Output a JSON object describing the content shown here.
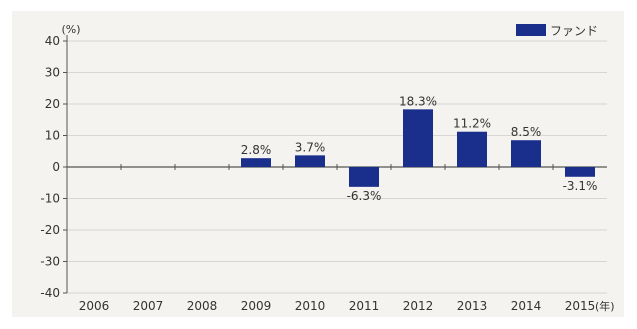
{
  "chart_data": {
    "type": "bar",
    "y_unit": "(%)",
    "x_unit": "(年)",
    "categories": [
      "2006",
      "2007",
      "2008",
      "2009",
      "2010",
      "2011",
      "2012",
      "2013",
      "2014",
      "2015"
    ],
    "series": [
      {
        "name": "ファンド",
        "values": [
          null,
          null,
          null,
          2.8,
          3.7,
          -6.3,
          18.3,
          11.2,
          8.5,
          -3.1
        ],
        "labels": [
          "",
          "",
          "",
          "2.8%",
          "3.7%",
          "-6.3%",
          "18.3%",
          "11.2%",
          "8.5%",
          "-3.1%"
        ],
        "color": "#1a2e8c"
      }
    ],
    "ylim": [
      -40,
      40
    ],
    "yticks": [
      40,
      30,
      20,
      10,
      0,
      -10,
      -20,
      -30,
      -40
    ],
    "grid": true,
    "legend": "top-right"
  }
}
